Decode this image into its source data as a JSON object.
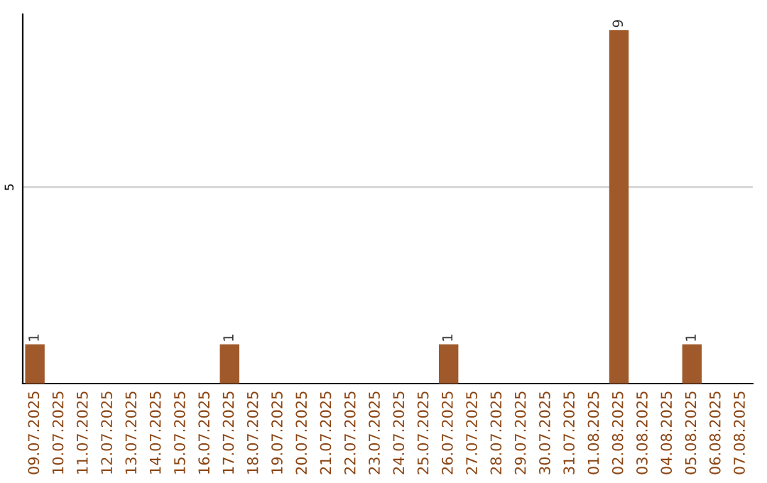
{
  "chart_data": {
    "type": "bar",
    "categories": [
      "09.07.2025",
      "10.07.2025",
      "11.07.2025",
      "12.07.2025",
      "13.07.2025",
      "14.07.2025",
      "15.07.2025",
      "16.07.2025",
      "17.07.2025",
      "18.07.2025",
      "19.07.2025",
      "20.07.2025",
      "21.07.2025",
      "22.07.2025",
      "23.07.2025",
      "24.07.2025",
      "25.07.2025",
      "26.07.2025",
      "27.07.2025",
      "28.07.2025",
      "29.07.2025",
      "30.07.2025",
      "31.07.2025",
      "01.08.2025",
      "02.08.2025",
      "03.08.2025",
      "04.08.2025",
      "05.08.2025",
      "06.08.2025",
      "07.08.2025"
    ],
    "values": [
      1,
      0,
      0,
      0,
      0,
      0,
      0,
      0,
      1,
      0,
      0,
      0,
      0,
      0,
      0,
      0,
      0,
      1,
      0,
      0,
      0,
      0,
      0,
      0,
      9,
      0,
      0,
      1,
      0,
      0
    ],
    "value_labels": [
      "1",
      null,
      null,
      null,
      null,
      null,
      null,
      null,
      "1",
      null,
      null,
      null,
      null,
      null,
      null,
      null,
      null,
      "1",
      null,
      null,
      null,
      null,
      null,
      null,
      "9",
      null,
      null,
      "1",
      null,
      null
    ],
    "color": "#a0592b",
    "ylim": [
      0,
      9.4
    ],
    "yticks": [
      5
    ],
    "grid": "y"
  }
}
